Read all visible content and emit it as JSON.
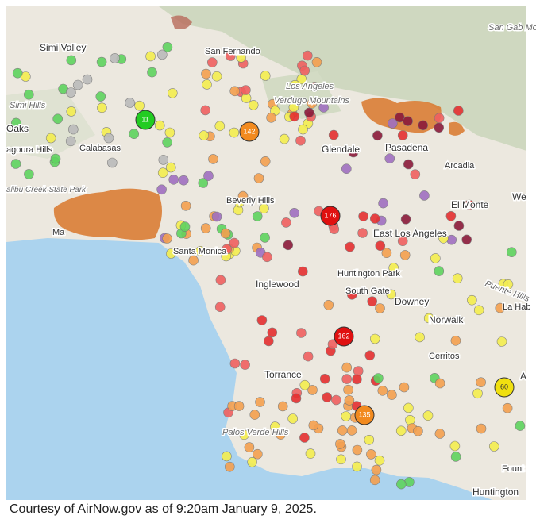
{
  "map": {
    "places": [
      "Simi Valley",
      "San Fernando",
      "Los Angeles",
      "Verdugo Mountains",
      "Simi Hills",
      "Oaks",
      "agoura Hills",
      "Calabasas",
      "alibu Creek State Park",
      "Glendale",
      "Pasadena",
      "Arcadia",
      "Beverly Hills",
      "El Monte",
      "We",
      "Ma",
      "Santa Monica",
      "East Los Angeles",
      "Huntington Park",
      "South Gate",
      "Inglewood",
      "Downey",
      "Norwalk",
      "Puente Hills",
      "La Hab",
      "Cerritos",
      "Torrance",
      "Palos Verde Hills",
      "San Gab Mount",
      "Huntington",
      "Fount",
      "A"
    ],
    "monitors": [
      "11",
      "142",
      "176",
      "162",
      "135",
      "60"
    ]
  },
  "caption": "Courtesy of AirNow.gov as of 9:20am January 9, 2025."
}
